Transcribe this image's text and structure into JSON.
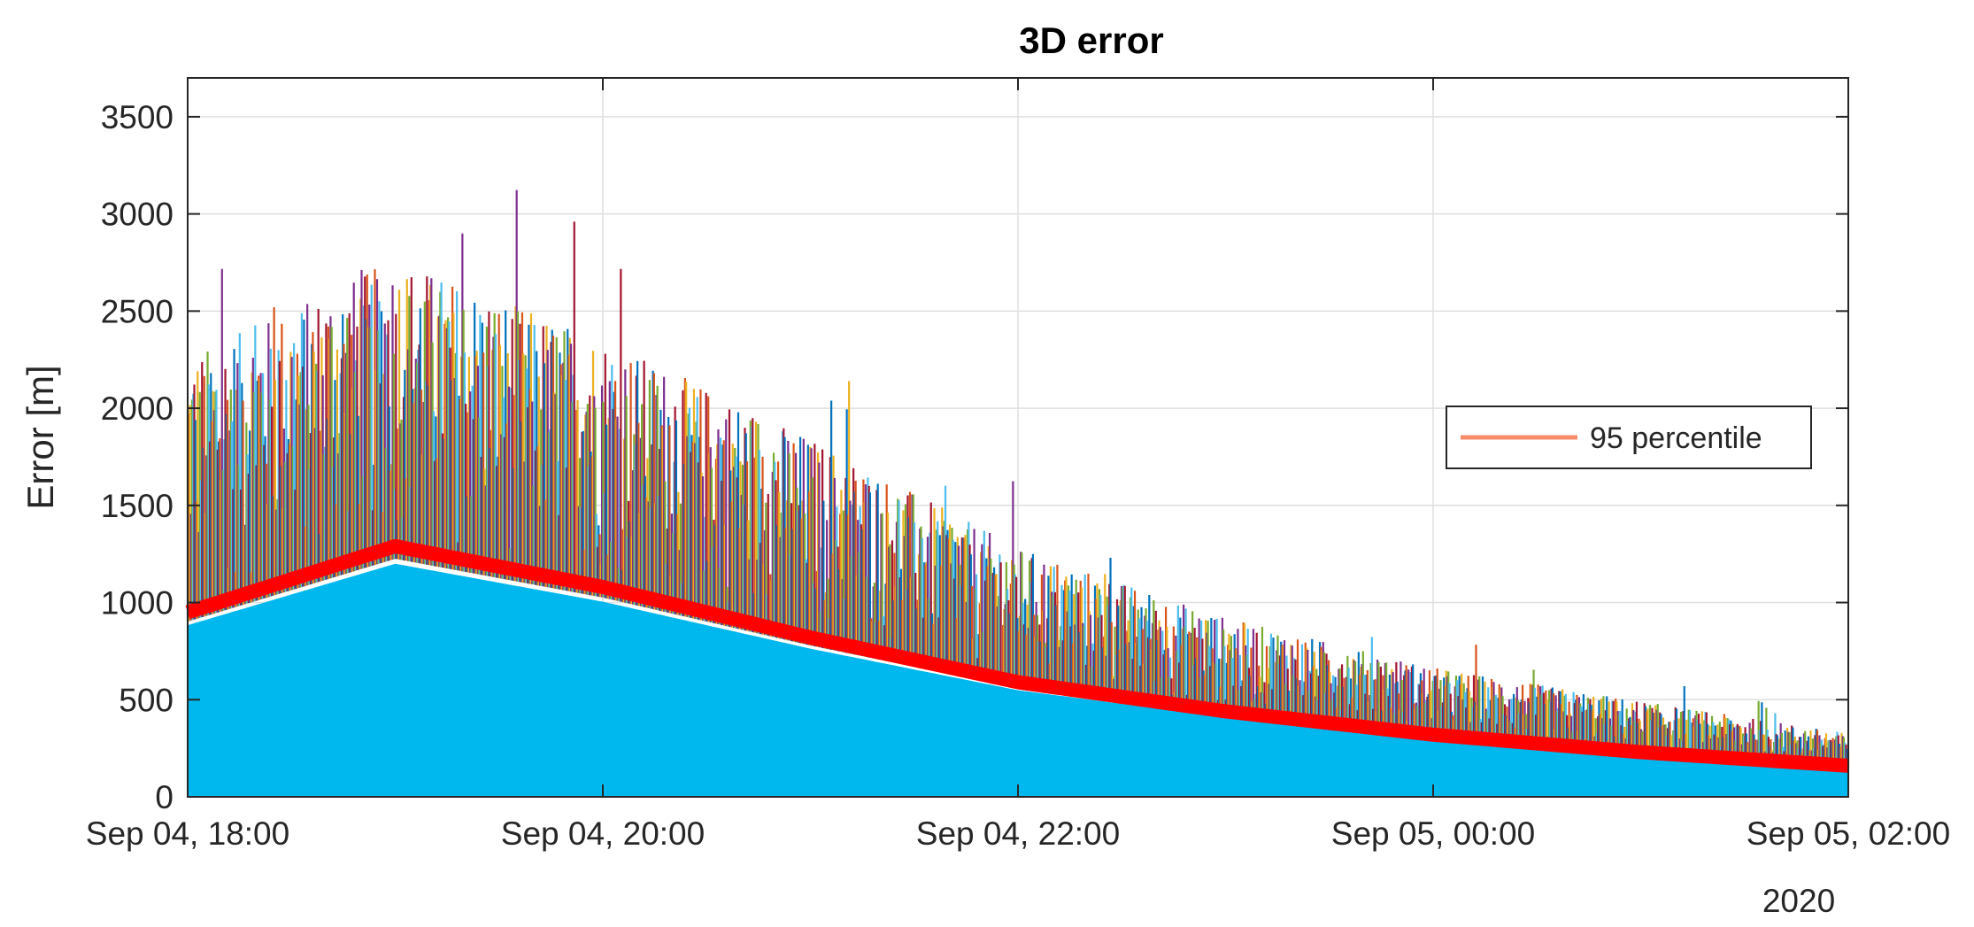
{
  "chart_data": {
    "type": "line",
    "title": "3D error",
    "xlabel": "",
    "ylabel": "Error [m]",
    "ylim": [
      0,
      3700
    ],
    "xlim": [
      "2020-09-04 18:00",
      "2020-09-05 02:00"
    ],
    "x_tick_labels": [
      "Sep 04, 18:00",
      "Sep 04, 20:00",
      "Sep 04, 22:00",
      "Sep 05, 00:00",
      "Sep 05, 02:00"
    ],
    "x_secondary_label": "2020",
    "y_ticks": [
      0,
      500,
      1000,
      1500,
      2000,
      2500,
      3000,
      3500
    ],
    "grid": true,
    "legend": {
      "entries": [
        "95 percentile"
      ],
      "placement": "right"
    },
    "x": [
      "2020-09-04 18:00",
      "2020-09-04 19:00",
      "2020-09-04 20:00",
      "2020-09-04 21:00",
      "2020-09-04 22:00",
      "2020-09-04 23:00",
      "2020-09-05 00:00",
      "2020-09-05 01:00",
      "2020-09-05 02:00"
    ],
    "series": [
      {
        "name": "95 percentile",
        "color": "#ff0000",
        "values": [
          950,
          1290,
          1080,
          820,
          590,
          440,
          320,
          230,
          160
        ]
      }
    ],
    "samples_upper_envelope": [
      2200,
      2700,
      2300,
      1800,
      1250,
      900,
      650,
      480,
      320
    ],
    "samples_peak": 3450,
    "colors": [
      "#0072bd",
      "#d95319",
      "#edb120",
      "#7e2f8e",
      "#77ac30",
      "#4dbeee",
      "#a2142f"
    ],
    "fill_color": "#00b8ee"
  }
}
